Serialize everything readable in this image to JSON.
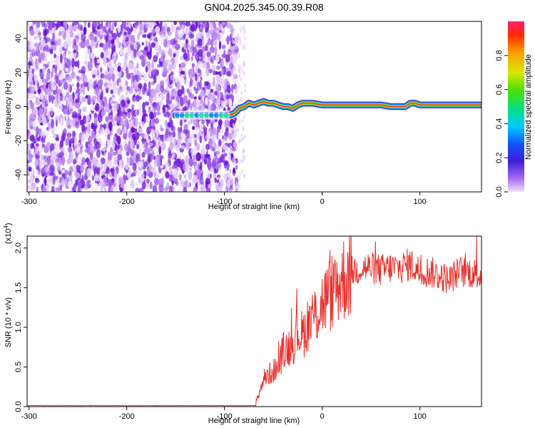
{
  "title": "GN04.2025.345.00.39.R08",
  "colors": {
    "snr_line": "#e8302c",
    "ridge_core": "#e8302c",
    "axis": "#000000",
    "noise_colors": [
      "#f2e6ff",
      "#e2ccfb",
      "#cfaaf6",
      "#b985ef",
      "#9b5ae6",
      "#7d2fdc",
      "#6a12d6"
    ]
  },
  "chart_data": [
    {
      "type": "heatmap",
      "xlabel": "Height of straight line (km)",
      "ylabel": "Frequency (Hz)",
      "xlim": [
        -302,
        163
      ],
      "ylim": [
        -50,
        50
      ],
      "xticks": [
        -300,
        -200,
        -100,
        0,
        100
      ],
      "yticks": [
        -40,
        -20,
        0,
        20,
        40
      ],
      "noise_region_x": [
        -302,
        -92
      ],
      "ridge": {
        "x": [
          -150,
          -140,
          -130,
          -120,
          -110,
          -100,
          -95,
          -90,
          -85,
          -80,
          -75,
          -70,
          -65,
          -60,
          -55,
          -50,
          -45,
          -40,
          -35,
          -30,
          -25,
          -20,
          -15,
          -10,
          0,
          20,
          40,
          60,
          70,
          80,
          85,
          90,
          95,
          100,
          110,
          120,
          140,
          163
        ],
        "y": [
          -5,
          -5,
          -5,
          -5,
          -5,
          -5,
          -5,
          -4,
          -1,
          0,
          2,
          1,
          2,
          3,
          2,
          2,
          1,
          0,
          0,
          -1,
          1,
          2,
          2,
          2,
          1,
          1,
          1,
          1,
          0,
          0,
          0,
          2,
          2,
          1,
          1,
          1,
          1,
          1
        ]
      },
      "colorbar": {
        "label": "Normalized spectral amplitude",
        "range": [
          0.0,
          1.0
        ],
        "ticks": [
          "0.0",
          "0.2",
          "0.4",
          "0.6",
          "0.8"
        ]
      }
    },
    {
      "type": "line",
      "xlabel": "Height of straight line (km)",
      "ylabel": "SNR (10 * v/v)",
      "y_multiplier": "(x10",
      "y_multiplier_exp": "4",
      "y_multiplier_close": ")",
      "xlim": [
        -302,
        163
      ],
      "ylim": [
        0,
        2.15
      ],
      "xticks": [
        -300,
        -200,
        -100,
        0,
        100
      ],
      "yticks": [
        "0.0",
        "0.5",
        "1.0",
        "1.5",
        "2.0"
      ],
      "series": [
        {
          "x": [
            -302,
            -80,
            -70,
            -65,
            -60,
            -55,
            -50,
            -45,
            -40,
            -35,
            -30,
            -25,
            -20,
            -15,
            -10,
            -5,
            0,
            10,
            20,
            30,
            40,
            50,
            60,
            70,
            80,
            90,
            100,
            110,
            120,
            130,
            140,
            150,
            163
          ],
          "y": [
            0.01,
            0.01,
            0.03,
            0.15,
            0.35,
            0.4,
            0.45,
            0.5,
            0.7,
            0.75,
            0.8,
            0.95,
            0.9,
            1.05,
            1.1,
            1.2,
            1.3,
            1.45,
            1.6,
            1.7,
            1.75,
            1.75,
            1.72,
            1.75,
            1.75,
            1.8,
            1.7,
            1.7,
            1.65,
            1.6,
            1.7,
            1.7,
            1.65
          ]
        }
      ]
    }
  ]
}
